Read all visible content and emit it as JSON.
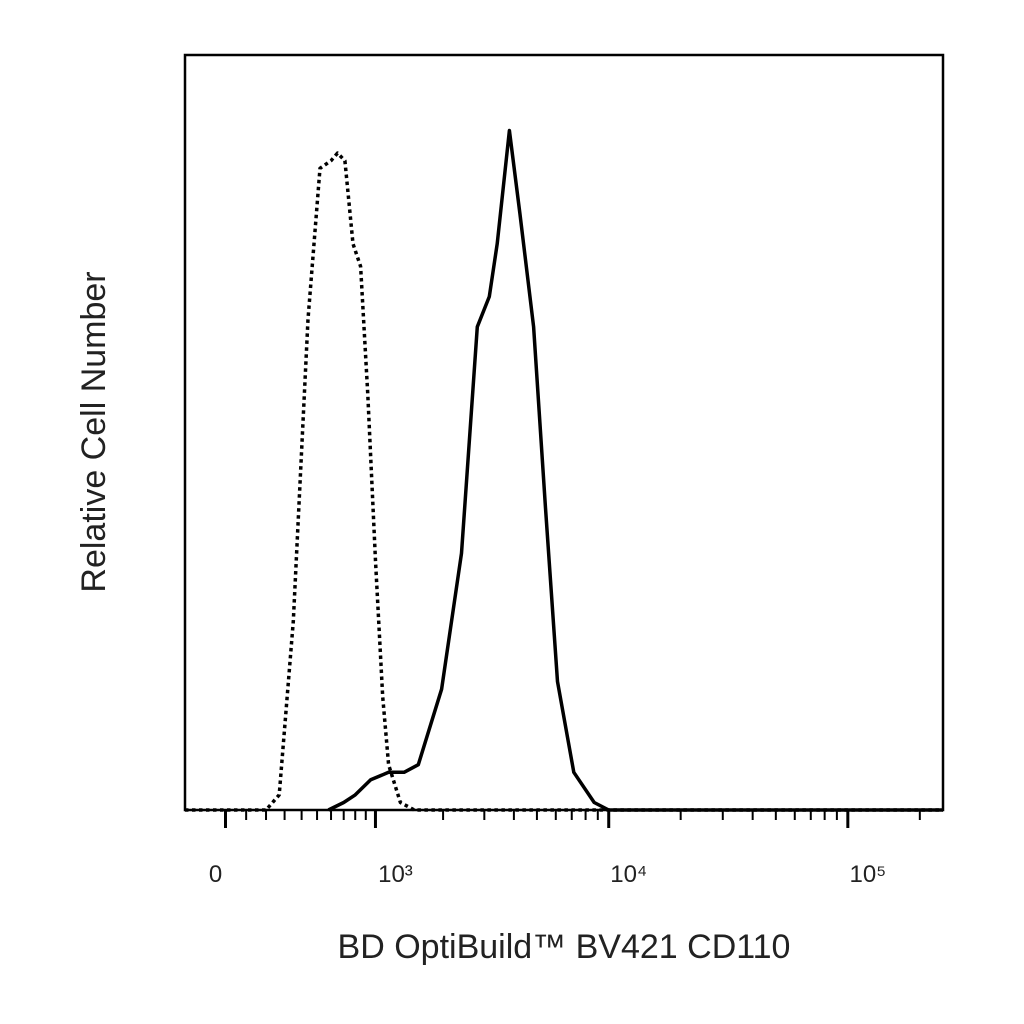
{
  "chart_data": {
    "type": "line",
    "xlabel": "BD OptiBuild™ BV421 CD110",
    "ylabel": "Relative Cell Number",
    "xscale": "biexponential",
    "xlim": [
      -200,
      250000
    ],
    "ylim": [
      0,
      100
    ],
    "xticks": [
      0,
      {
        "value": 1000,
        "label": "10³"
      },
      {
        "value": 10000,
        "label": "10⁴"
      },
      {
        "value": 100000,
        "label": "10⁵"
      }
    ],
    "xminorticks": [
      100,
      200,
      300,
      400,
      500,
      600,
      700,
      800,
      900,
      2000,
      3000,
      4000,
      5000,
      6000,
      7000,
      8000,
      9000,
      20000,
      30000,
      40000,
      50000,
      60000,
      70000,
      80000,
      90000,
      200000
    ],
    "series": [
      {
        "color": "#000000",
        "style": "dotted",
        "x": [
          -200,
          200,
          270,
          350,
          440,
          520,
          600,
          650,
          710,
          780,
          850,
          920,
          1000,
          1080,
          1150,
          1300,
          1500,
          250000
        ],
        "values": [
          0,
          0,
          2,
          25,
          65,
          85,
          86,
          87,
          86,
          75,
          72,
          55,
          33,
          15,
          6,
          1,
          0,
          0
        ]
      },
      {
        "color": "#000000",
        "style": "solid",
        "x": [
          580,
          700,
          800,
          950,
          1150,
          1350,
          1560,
          1970,
          2400,
          2800,
          3150,
          3400,
          3830,
          4240,
          4840,
          5430,
          6100,
          7140,
          8690,
          10000,
          250000
        ],
        "values": [
          0,
          1,
          2,
          4,
          5,
          5,
          6,
          16,
          34,
          64,
          68,
          75,
          90,
          79,
          64,
          40,
          17,
          5,
          1,
          0,
          0
        ]
      }
    ]
  }
}
